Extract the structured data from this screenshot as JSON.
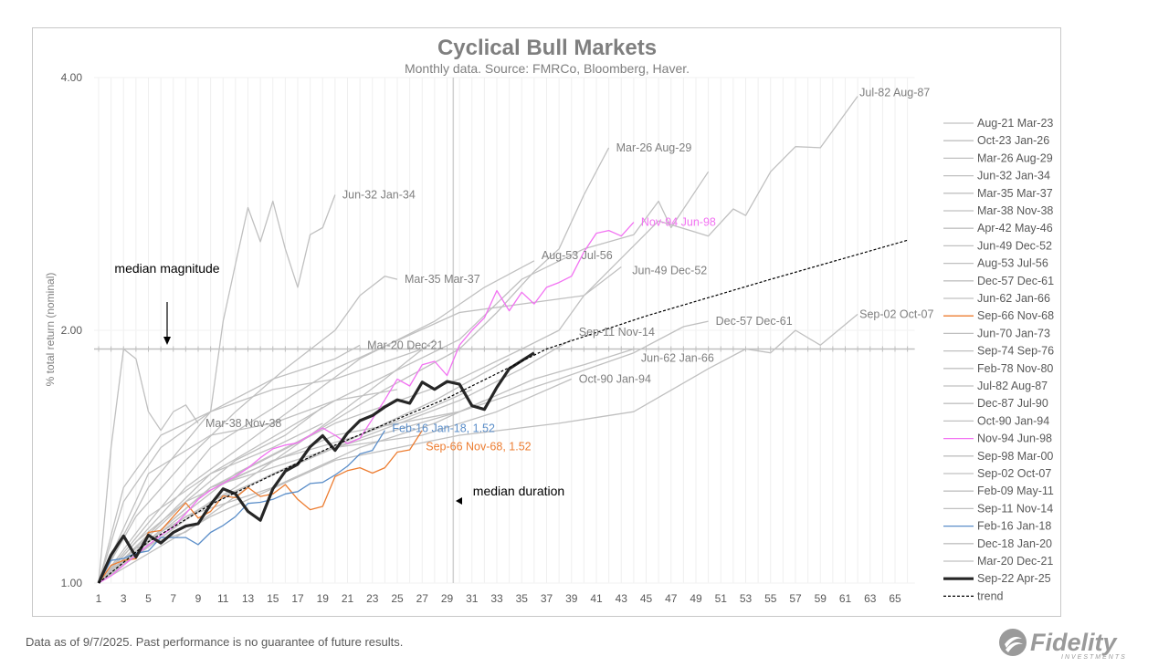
{
  "footer": {
    "note": "Data as of 9/7/2025. Past performance is no guarantee of future results."
  },
  "logo": {
    "text": "Fidelity",
    "subtext": "INVESTMENTS"
  },
  "chart_data": {
    "type": "line",
    "title": "Cyclical Bull Markets",
    "subtitle": "Monthly data.  Source: FMRCo, Bloomberg, Haver.",
    "ylabel": "% total return (nominal)",
    "xlabel": "",
    "y_scale": "log",
    "ylim": [
      1.0,
      4.0
    ],
    "yticks": [
      "1.00",
      "2.00",
      "4.00"
    ],
    "xlim": [
      1,
      66
    ],
    "xticks": [
      1,
      3,
      5,
      7,
      9,
      11,
      13,
      15,
      17,
      19,
      21,
      23,
      25,
      27,
      29,
      31,
      33,
      35,
      37,
      39,
      41,
      43,
      45,
      47,
      49,
      51,
      53,
      55,
      57,
      59,
      61,
      63,
      65
    ],
    "grid": "vertical",
    "legend_placement": "right",
    "median_magnitude": {
      "label": "median magnitude",
      "value": 1.9
    },
    "median_duration": {
      "label": "median duration",
      "value": 29.5
    },
    "colors": {
      "gray": "#c0c0c0",
      "highlight_black": "#262626",
      "pink": "#f272f2",
      "orange": "#ed7d31",
      "blue": "#5b8ec9",
      "trend": "#000000"
    },
    "series": [
      {
        "name": "Aug-21 Mar-23",
        "color": "#c0c0c0",
        "points": [
          [
            1,
            1
          ],
          [
            4,
            1.12
          ],
          [
            8,
            1.25
          ],
          [
            12,
            1.4
          ],
          [
            16,
            1.5
          ],
          [
            19,
            1.62
          ]
        ]
      },
      {
        "name": "Oct-23 Jan-26",
        "color": "#c0c0c0",
        "points": [
          [
            1,
            1
          ],
          [
            6,
            1.15
          ],
          [
            12,
            1.35
          ],
          [
            18,
            1.5
          ],
          [
            24,
            1.75
          ],
          [
            28,
            1.95
          ]
        ]
      },
      {
        "name": "Mar-26 Aug-29",
        "color": "#c0c0c0",
        "label": "Mar-26 Aug-29",
        "points": [
          [
            1,
            1
          ],
          [
            6,
            1.15
          ],
          [
            12,
            1.3
          ],
          [
            18,
            1.5
          ],
          [
            24,
            1.7
          ],
          [
            30,
            1.9
          ],
          [
            33,
            2.1
          ],
          [
            36,
            2.35
          ],
          [
            38,
            2.5
          ],
          [
            40,
            2.9
          ],
          [
            42,
            3.3
          ]
        ]
      },
      {
        "name": "Jun-32 Jan-34",
        "color": "#c0c0c0",
        "label": "Jun-32 Jan-34",
        "points": [
          [
            1,
            1
          ],
          [
            5,
            1.3
          ],
          [
            10,
            1.6
          ],
          [
            11,
            2.05
          ],
          [
            12,
            2.4
          ],
          [
            13,
            2.8
          ],
          [
            14,
            2.55
          ],
          [
            15,
            2.85
          ],
          [
            16,
            2.5
          ],
          [
            17,
            2.25
          ],
          [
            18,
            2.6
          ],
          [
            19,
            2.65
          ],
          [
            20,
            2.9
          ]
        ]
      },
      {
        "name": "Mar-35 Mar-37",
        "color": "#c0c0c0",
        "label": "Mar-35 Mar-37",
        "points": [
          [
            1,
            1
          ],
          [
            4,
            1.2
          ],
          [
            8,
            1.4
          ],
          [
            12,
            1.6
          ],
          [
            16,
            1.8
          ],
          [
            20,
            2.0
          ],
          [
            22,
            2.2
          ],
          [
            24,
            2.32
          ],
          [
            25,
            2.3
          ]
        ]
      },
      {
        "name": "Mar-38 Nov-38",
        "color": "#c0c0c0",
        "label": "Mar-38 Nov-38",
        "points": [
          [
            1,
            1
          ],
          [
            2,
            1.45
          ],
          [
            3,
            1.9
          ],
          [
            4,
            1.85
          ],
          [
            5,
            1.6
          ],
          [
            6,
            1.52
          ],
          [
            7,
            1.6
          ],
          [
            8,
            1.63
          ],
          [
            9,
            1.55
          ]
        ]
      },
      {
        "name": "Apr-42 May-46",
        "color": "#c0c0c0",
        "points": [
          [
            1,
            1
          ],
          [
            10,
            1.35
          ],
          [
            20,
            1.65
          ],
          [
            30,
            1.95
          ],
          [
            35,
            2.3
          ],
          [
            40,
            2.5
          ],
          [
            44,
            2.6
          ],
          [
            46,
            2.85
          ],
          [
            47,
            2.65
          ],
          [
            50,
            3.09
          ]
        ]
      },
      {
        "name": "Jun-49 Dec-52",
        "color": "#c0c0c0",
        "label": "Jun-49 Dec-52",
        "points": [
          [
            1,
            1
          ],
          [
            10,
            1.3
          ],
          [
            20,
            1.55
          ],
          [
            30,
            1.75
          ],
          [
            35,
            1.9
          ],
          [
            38,
            2.0
          ],
          [
            40,
            2.2
          ],
          [
            43,
            2.38
          ]
        ]
      },
      {
        "name": "Aug-53 Jul-56",
        "color": "#c0c0c0",
        "label": "Aug-53 Jul-56",
        "points": [
          [
            1,
            1
          ],
          [
            8,
            1.3
          ],
          [
            15,
            1.55
          ],
          [
            22,
            1.85
          ],
          [
            28,
            2.05
          ],
          [
            32,
            2.25
          ],
          [
            36,
            2.42
          ]
        ]
      },
      {
        "name": "Dec-57 Dec-61",
        "color": "#c0c0c0",
        "label": "Dec-57 Dec-61",
        "points": [
          [
            1,
            1
          ],
          [
            10,
            1.3
          ],
          [
            20,
            1.5
          ],
          [
            30,
            1.6
          ],
          [
            38,
            1.75
          ],
          [
            44,
            1.88
          ],
          [
            48,
            2.02
          ],
          [
            50,
            2.05
          ]
        ]
      },
      {
        "name": "Jun-62 Jan-66",
        "color": "#c0c0c0",
        "label": "Jun-62 Jan-66",
        "points": [
          [
            1,
            1
          ],
          [
            10,
            1.25
          ],
          [
            20,
            1.45
          ],
          [
            30,
            1.6
          ],
          [
            36,
            1.75
          ],
          [
            40,
            1.82
          ],
          [
            44,
            1.9
          ]
        ]
      },
      {
        "name": "Sep-66 Nov-68",
        "color": "#ed7d31",
        "label": "Sep-66 Nov-68, 1.52",
        "values": [
          1.0,
          1.05,
          1.064,
          1.069,
          1.149,
          1.155,
          1.2,
          1.246,
          1.195,
          1.217,
          1.27,
          1.264,
          1.3,
          1.268,
          1.277,
          1.31,
          1.258,
          1.223,
          1.234,
          1.339,
          1.361,
          1.372,
          1.352,
          1.372,
          1.432,
          1.441,
          1.52
        ]
      },
      {
        "name": "Jun-70 Jan-73",
        "color": "#c0c0c0",
        "points": [
          [
            1,
            1
          ],
          [
            8,
            1.25
          ],
          [
            15,
            1.4
          ],
          [
            22,
            1.5
          ],
          [
            27,
            1.6
          ],
          [
            31,
            1.7
          ]
        ]
      },
      {
        "name": "Sep-74 Sep-76",
        "color": "#c0c0c0",
        "points": [
          [
            1,
            1
          ],
          [
            5,
            1.35
          ],
          [
            10,
            1.5
          ],
          [
            15,
            1.55
          ],
          [
            20,
            1.65
          ],
          [
            25,
            1.7
          ]
        ]
      },
      {
        "name": "Feb-78 Nov-80",
        "color": "#c0c0c0",
        "points": [
          [
            1,
            1
          ],
          [
            8,
            1.2
          ],
          [
            15,
            1.35
          ],
          [
            22,
            1.5
          ],
          [
            28,
            1.65
          ],
          [
            34,
            1.85
          ]
        ]
      },
      {
        "name": "Jul-82 Aug-87",
        "color": "#c0c0c0",
        "label": "Jul-82 Aug-87",
        "points": [
          [
            1,
            1
          ],
          [
            10,
            1.45
          ],
          [
            20,
            1.8
          ],
          [
            30,
            2.1
          ],
          [
            40,
            2.2
          ],
          [
            46,
            2.7
          ],
          [
            50,
            2.59
          ],
          [
            52,
            2.79
          ],
          [
            53,
            2.74
          ],
          [
            55,
            3.09
          ],
          [
            57,
            3.31
          ],
          [
            59,
            3.3
          ],
          [
            62,
            3.8
          ]
        ]
      },
      {
        "name": "Dec-87 Jul-90",
        "color": "#c0c0c0",
        "points": [
          [
            1,
            1
          ],
          [
            8,
            1.2
          ],
          [
            15,
            1.3
          ],
          [
            22,
            1.45
          ],
          [
            28,
            1.55
          ],
          [
            32,
            1.65
          ]
        ]
      },
      {
        "name": "Oct-90 Jan-94",
        "color": "#c0c0c0",
        "label": "Oct-90 Jan-94",
        "points": [
          [
            1,
            1
          ],
          [
            10,
            1.3
          ],
          [
            20,
            1.45
          ],
          [
            27,
            1.5
          ],
          [
            33,
            1.6
          ],
          [
            39,
            1.75
          ]
        ]
      },
      {
        "name": "Nov-94 Jun-98",
        "color": "#f272f2",
        "label": "Nov-94 Jun-98",
        "values": [
          1.0,
          1.02,
          1.05,
          1.08,
          1.11,
          1.14,
          1.166,
          1.21,
          1.258,
          1.29,
          1.314,
          1.34,
          1.371,
          1.41,
          1.445,
          1.46,
          1.469,
          1.5,
          1.53,
          1.5,
          1.466,
          1.487,
          1.568,
          1.653,
          1.75,
          1.717,
          1.82,
          1.837,
          1.767,
          1.92,
          2.0,
          2.07,
          2.23,
          2.11,
          2.22,
          2.15,
          2.25,
          2.28,
          2.32,
          2.48,
          2.61,
          2.63,
          2.59,
          2.69
        ]
      },
      {
        "name": "Sep-98 Mar-00",
        "color": "#c0c0c0",
        "points": [
          [
            1,
            1
          ],
          [
            5,
            1.2
          ],
          [
            10,
            1.35
          ],
          [
            15,
            1.45
          ],
          [
            19,
            1.55
          ]
        ]
      },
      {
        "name": "Sep-02 Oct-07",
        "color": "#c0c0c0",
        "label": "Sep-02 Oct-07",
        "points": [
          [
            1,
            1
          ],
          [
            10,
            1.2
          ],
          [
            20,
            1.4
          ],
          [
            30,
            1.5
          ],
          [
            38,
            1.55
          ],
          [
            44,
            1.6
          ],
          [
            50,
            1.8
          ],
          [
            53,
            1.9
          ],
          [
            55,
            1.88
          ],
          [
            57,
            2.0
          ],
          [
            59,
            1.92
          ],
          [
            62,
            2.09
          ]
        ]
      },
      {
        "name": "Feb-09 May-11",
        "color": "#c0c0c0",
        "points": [
          [
            1,
            1
          ],
          [
            3,
            1.25
          ],
          [
            6,
            1.45
          ],
          [
            10,
            1.6
          ],
          [
            15,
            1.7
          ],
          [
            20,
            1.75
          ],
          [
            27,
            1.9
          ]
        ]
      },
      {
        "name": "Sep-11 Nov-14",
        "color": "#c0c0c0",
        "label": "Sep-11 Nov-14",
        "points": [
          [
            1,
            1
          ],
          [
            10,
            1.25
          ],
          [
            20,
            1.45
          ],
          [
            30,
            1.65
          ],
          [
            35,
            1.8
          ],
          [
            39,
            1.95
          ]
        ]
      },
      {
        "name": "Feb-16 Jan-18",
        "color": "#5b8ec9",
        "label": "Feb-16 Jan-18, 1.52",
        "values": [
          1.0,
          1.064,
          1.07,
          1.085,
          1.092,
          1.133,
          1.133,
          1.133,
          1.111,
          1.149,
          1.171,
          1.2,
          1.244,
          1.248,
          1.258,
          1.277,
          1.285,
          1.314,
          1.318,
          1.345,
          1.378,
          1.425,
          1.439,
          1.52
        ]
      },
      {
        "name": "Dec-18 Jan-20",
        "color": "#c0c0c0",
        "points": [
          [
            1,
            1
          ],
          [
            4,
            1.1
          ],
          [
            8,
            1.15
          ],
          [
            13,
            1.3
          ]
        ]
      },
      {
        "name": "Mar-20 Dec-21",
        "color": "#c0c0c0",
        "label": "Mar-20 Dec-21",
        "points": [
          [
            1,
            1
          ],
          [
            3,
            1.3
          ],
          [
            6,
            1.5
          ],
          [
            10,
            1.6
          ],
          [
            15,
            1.75
          ],
          [
            20,
            1.85
          ],
          [
            22,
            1.92
          ]
        ]
      },
      {
        "name": "Sep-22 Apr-25",
        "color": "#262626",
        "bold": true,
        "values": [
          1.0,
          1.08,
          1.138,
          1.074,
          1.14,
          1.116,
          1.149,
          1.169,
          1.177,
          1.24,
          1.295,
          1.277,
          1.217,
          1.188,
          1.295,
          1.359,
          1.385,
          1.453,
          1.498,
          1.439,
          1.509,
          1.561,
          1.583,
          1.621,
          1.653,
          1.637,
          1.735,
          1.701,
          1.738,
          1.725,
          1.626,
          1.61,
          1.71,
          1.8,
          1.84,
          1.88
        ]
      },
      {
        "name": "trend",
        "color": "#000000",
        "dashed": true,
        "points": [
          [
            1,
            1.0
          ],
          [
            5,
            1.12
          ],
          [
            10,
            1.24
          ],
          [
            20,
            1.46
          ],
          [
            29,
            1.66
          ],
          [
            37,
            1.9
          ],
          [
            45,
            2.08
          ],
          [
            55,
            2.3
          ],
          [
            66,
            2.56
          ]
        ]
      }
    ]
  }
}
